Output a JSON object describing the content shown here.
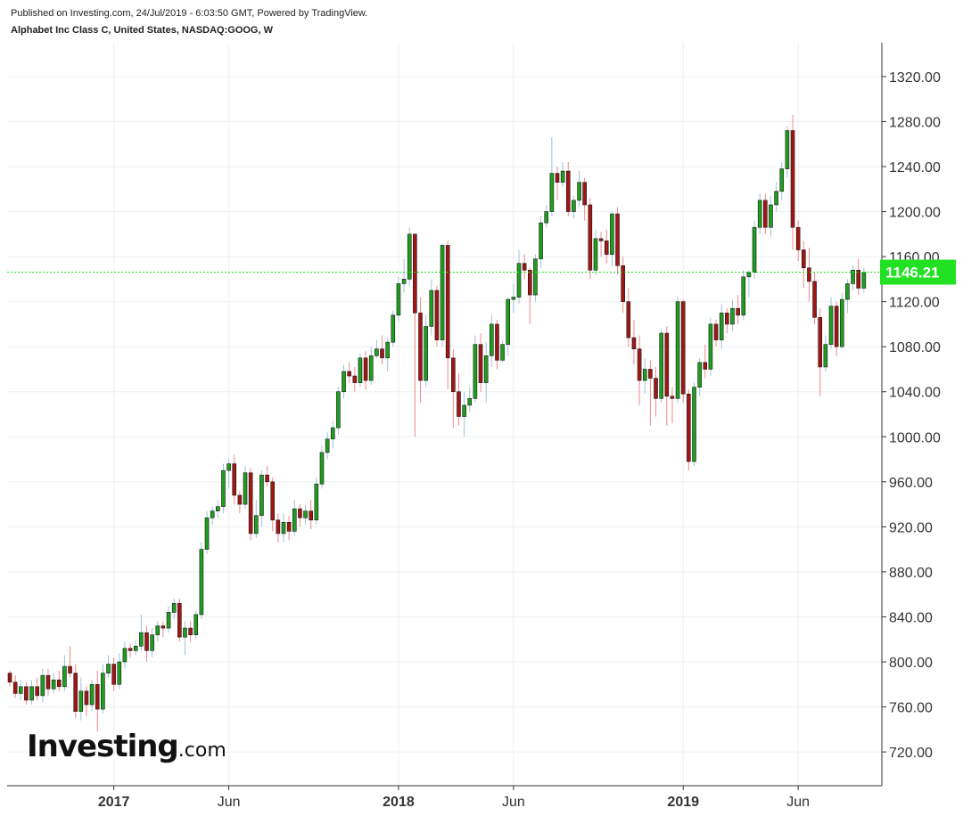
{
  "header": {
    "published": "Published on Investing.com, 24/Jul/2019 - 6:03:50 GMT, Powered by TradingView.",
    "symbol": "Alphabet Inc Class C, United States, NASDAQ:GOOG, W"
  },
  "logo": {
    "main": "Investing",
    "suffix": ".com"
  },
  "colors": {
    "up": "#1e9e1e",
    "down": "#a31515",
    "up_wick": "#9fc2d8",
    "down_wick": "#f08a8a",
    "last_price": "#22e022",
    "grid": "#eef0f3"
  },
  "chart_data": {
    "type": "candlestick",
    "title": "Alphabet Inc Class C, United States, NASDAQ:GOOG, W",
    "interval": "weekly",
    "ylim": [
      690,
      1350
    ],
    "y_ticks": [
      "720.00",
      "760.00",
      "800.00",
      "840.00",
      "880.00",
      "920.00",
      "960.00",
      "1000.00",
      "1040.00",
      "1080.00",
      "1120.00",
      "1160.00",
      "1200.00",
      "1240.00",
      "1280.00",
      "1320.00"
    ],
    "x_ticks": [
      {
        "label": "2017",
        "index": 19,
        "bold": true
      },
      {
        "label": "Jun",
        "index": 40,
        "bold": false
      },
      {
        "label": "2018",
        "index": 71,
        "bold": true
      },
      {
        "label": "Jun",
        "index": 92,
        "bold": false
      },
      {
        "label": "2019",
        "index": 123,
        "bold": true
      },
      {
        "label": "Jun",
        "index": 144,
        "bold": false
      }
    ],
    "last_price": 1146.21,
    "last_price_label": "1146.21",
    "candles": [
      [
        790,
        782,
        792,
        778
      ],
      [
        782,
        772,
        788,
        768
      ],
      [
        772,
        778,
        784,
        766
      ],
      [
        778,
        766,
        782,
        762
      ],
      [
        766,
        778,
        784,
        762
      ],
      [
        778,
        770,
        786,
        766
      ],
      [
        770,
        788,
        794,
        764
      ],
      [
        788,
        776,
        794,
        770
      ],
      [
        776,
        784,
        790,
        772
      ],
      [
        784,
        778,
        792,
        774
      ],
      [
        778,
        796,
        806,
        774
      ],
      [
        796,
        790,
        814,
        786
      ],
      [
        790,
        756,
        798,
        750
      ],
      [
        756,
        774,
        786,
        748
      ],
      [
        774,
        762,
        778,
        752
      ],
      [
        762,
        780,
        784,
        756
      ],
      [
        780,
        758,
        792,
        738
      ],
      [
        758,
        790,
        798,
        754
      ],
      [
        790,
        798,
        806,
        786
      ],
      [
        798,
        780,
        804,
        774
      ],
      [
        780,
        800,
        808,
        776
      ],
      [
        800,
        812,
        818,
        794
      ],
      [
        812,
        810,
        816,
        804
      ],
      [
        810,
        814,
        820,
        806
      ],
      [
        814,
        826,
        842,
        810
      ],
      [
        826,
        810,
        832,
        800
      ],
      [
        810,
        824,
        830,
        804
      ],
      [
        824,
        832,
        836,
        818
      ],
      [
        832,
        830,
        836,
        822
      ],
      [
        830,
        844,
        850,
        826
      ],
      [
        844,
        852,
        856,
        838
      ],
      [
        852,
        822,
        856,
        818
      ],
      [
        822,
        830,
        836,
        806
      ],
      [
        830,
        824,
        836,
        818
      ],
      [
        824,
        842,
        846,
        820
      ],
      [
        842,
        900,
        906,
        838
      ],
      [
        900,
        928,
        934,
        896
      ],
      [
        928,
        934,
        938,
        922
      ],
      [
        934,
        938,
        944,
        928
      ],
      [
        938,
        970,
        976,
        932
      ],
      [
        970,
        976,
        980,
        954
      ],
      [
        976,
        948,
        984,
        940
      ],
      [
        948,
        940,
        952,
        932
      ],
      [
        940,
        968,
        974,
        936
      ],
      [
        968,
        914,
        972,
        908
      ],
      [
        914,
        930,
        944,
        910
      ],
      [
        930,
        966,
        970,
        920
      ],
      [
        966,
        960,
        974,
        956
      ],
      [
        960,
        926,
        964,
        916
      ],
      [
        926,
        914,
        932,
        906
      ],
      [
        914,
        924,
        932,
        906
      ],
      [
        924,
        916,
        930,
        908
      ],
      [
        916,
        936,
        944,
        912
      ],
      [
        936,
        928,
        940,
        920
      ],
      [
        928,
        934,
        940,
        922
      ],
      [
        934,
        926,
        944,
        918
      ],
      [
        926,
        958,
        964,
        922
      ],
      [
        958,
        986,
        992,
        954
      ],
      [
        986,
        998,
        1004,
        980
      ],
      [
        998,
        1008,
        1014,
        990
      ],
      [
        1008,
        1040,
        1044,
        1002
      ],
      [
        1040,
        1058,
        1064,
        1034
      ],
      [
        1058,
        1054,
        1066,
        1048
      ],
      [
        1054,
        1048,
        1062,
        1040
      ],
      [
        1048,
        1070,
        1074,
        1044
      ],
      [
        1070,
        1050,
        1076,
        1042
      ],
      [
        1050,
        1072,
        1080,
        1046
      ],
      [
        1072,
        1078,
        1086,
        1070
      ],
      [
        1078,
        1070,
        1090,
        1064
      ],
      [
        1070,
        1084,
        1088,
        1058
      ],
      [
        1084,
        1108,
        1112,
        1080
      ],
      [
        1108,
        1136,
        1142,
        1102
      ],
      [
        1136,
        1140,
        1158,
        1128
      ],
      [
        1140,
        1180,
        1186,
        1134
      ],
      [
        1180,
        1110,
        1180,
        1000
      ],
      [
        1110,
        1050,
        1124,
        1030
      ],
      [
        1050,
        1098,
        1108,
        1044
      ],
      [
        1098,
        1130,
        1140,
        1090
      ],
      [
        1130,
        1086,
        1134,
        1080
      ],
      [
        1086,
        1170,
        1172,
        1080
      ],
      [
        1170,
        1070,
        1174,
        1042
      ],
      [
        1070,
        1040,
        1078,
        1008
      ],
      [
        1040,
        1018,
        1056,
        1010
      ],
      [
        1018,
        1028,
        1040,
        1000
      ],
      [
        1028,
        1034,
        1044,
        1022
      ],
      [
        1034,
        1082,
        1090,
        1030
      ],
      [
        1082,
        1048,
        1092,
        1040
      ],
      [
        1048,
        1072,
        1084,
        1030
      ],
      [
        1072,
        1100,
        1108,
        1062
      ],
      [
        1100,
        1068,
        1104,
        1060
      ],
      [
        1068,
        1082,
        1086,
        1066
      ],
      [
        1082,
        1122,
        1124,
        1072
      ],
      [
        1122,
        1124,
        1136,
        1110
      ],
      [
        1124,
        1154,
        1166,
        1118
      ],
      [
        1154,
        1148,
        1162,
        1140
      ],
      [
        1148,
        1126,
        1150,
        1100
      ],
      [
        1126,
        1158,
        1162,
        1120
      ],
      [
        1158,
        1190,
        1196,
        1150
      ],
      [
        1190,
        1200,
        1206,
        1186
      ],
      [
        1200,
        1234,
        1266,
        1196
      ],
      [
        1234,
        1226,
        1240,
        1210
      ],
      [
        1226,
        1236,
        1244,
        1222
      ],
      [
        1236,
        1200,
        1244,
        1196
      ],
      [
        1200,
        1210,
        1214,
        1194
      ],
      [
        1210,
        1226,
        1236,
        1204
      ],
      [
        1226,
        1206,
        1230,
        1192
      ],
      [
        1206,
        1148,
        1212,
        1140
      ],
      [
        1148,
        1176,
        1184,
        1144
      ],
      [
        1176,
        1174,
        1182,
        1160
      ],
      [
        1174,
        1162,
        1184,
        1154
      ],
      [
        1162,
        1198,
        1200,
        1152
      ],
      [
        1198,
        1152,
        1204,
        1144
      ],
      [
        1152,
        1120,
        1160,
        1110
      ],
      [
        1120,
        1088,
        1132,
        1080
      ],
      [
        1088,
        1078,
        1104,
        1064
      ],
      [
        1078,
        1050,
        1090,
        1028
      ],
      [
        1050,
        1060,
        1070,
        1038
      ],
      [
        1060,
        1052,
        1068,
        1010
      ],
      [
        1052,
        1034,
        1062,
        1018
      ],
      [
        1034,
        1092,
        1096,
        1030
      ],
      [
        1092,
        1036,
        1098,
        1010
      ],
      [
        1036,
        1034,
        1044,
        1012
      ],
      [
        1034,
        1120,
        1124,
        1030
      ],
      [
        1120,
        1038,
        1122,
        1030
      ],
      [
        1038,
        978,
        1042,
        970
      ],
      [
        978,
        1044,
        1048,
        974
      ],
      [
        1044,
        1066,
        1070,
        1036
      ],
      [
        1066,
        1060,
        1082,
        1052
      ],
      [
        1060,
        1100,
        1106,
        1054
      ],
      [
        1100,
        1086,
        1104,
        1080
      ],
      [
        1086,
        1110,
        1118,
        1078
      ],
      [
        1110,
        1100,
        1114,
        1092
      ],
      [
        1100,
        1114,
        1122,
        1094
      ],
      [
        1114,
        1108,
        1126,
        1100
      ],
      [
        1108,
        1142,
        1148,
        1104
      ],
      [
        1142,
        1146,
        1148,
        1124
      ],
      [
        1146,
        1186,
        1192,
        1140
      ],
      [
        1186,
        1210,
        1216,
        1180
      ],
      [
        1210,
        1186,
        1216,
        1180
      ],
      [
        1186,
        1206,
        1214,
        1178
      ],
      [
        1206,
        1218,
        1226,
        1200
      ],
      [
        1218,
        1238,
        1244,
        1210
      ],
      [
        1238,
        1272,
        1276,
        1230
      ],
      [
        1272,
        1186,
        1286,
        1166
      ],
      [
        1186,
        1166,
        1192,
        1156
      ],
      [
        1166,
        1150,
        1174,
        1132
      ],
      [
        1150,
        1138,
        1168,
        1120
      ],
      [
        1138,
        1106,
        1146,
        1100
      ],
      [
        1106,
        1062,
        1114,
        1036
      ],
      [
        1062,
        1082,
        1090,
        1058
      ],
      [
        1082,
        1116,
        1124,
        1078
      ],
      [
        1116,
        1080,
        1120,
        1072
      ],
      [
        1080,
        1122,
        1128,
        1078
      ],
      [
        1122,
        1136,
        1140,
        1110
      ],
      [
        1136,
        1148,
        1152,
        1130
      ],
      [
        1148,
        1132,
        1158,
        1126
      ],
      [
        1132,
        1146,
        1150,
        1128
      ]
    ]
  }
}
